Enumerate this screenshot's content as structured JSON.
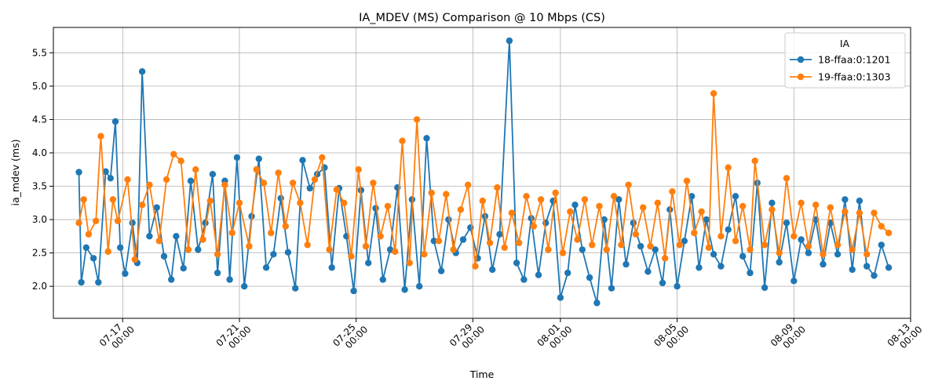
{
  "chart_data": {
    "type": "line",
    "title": "IA_MDEV (MS) Comparison @ 10 Mbps (CS)",
    "xlabel": "Time",
    "ylabel": "ia_mdev (ms)",
    "x_type": "date",
    "xlim": [
      "2025-07-14T15:00",
      "2025-08-13T00:00"
    ],
    "ylim": [
      1.52,
      5.88
    ],
    "x_ticks": [
      {
        "date": "2025-07-17",
        "line1": "07-17",
        "line2": "00:00"
      },
      {
        "date": "2025-07-21",
        "line1": "07-21",
        "line2": "00:00"
      },
      {
        "date": "2025-07-25",
        "line1": "07-25",
        "line2": "00:00"
      },
      {
        "date": "2025-07-29",
        "line1": "07-29",
        "line2": "00:00"
      },
      {
        "date": "2025-08-01",
        "line1": "08-01",
        "line2": "00:00"
      },
      {
        "date": "2025-08-05",
        "line1": "08-05",
        "line2": "00:00"
      },
      {
        "date": "2025-08-09",
        "line1": "08-09",
        "line2": "00:00"
      },
      {
        "date": "2025-08-13",
        "line1": "08-13",
        "line2": "00:00"
      }
    ],
    "y_ticks": [
      "2.0",
      "2.5",
      "3.0",
      "3.5",
      "4.0",
      "4.5",
      "5.0",
      "5.5"
    ],
    "grid": true,
    "legend": {
      "title": "IA",
      "placement": "top-right"
    },
    "series": [
      {
        "name": "18-ffaa:0:1201",
        "color": "#1f77b4",
        "points": [
          [
            "2025-07-15T12:00",
            3.71
          ],
          [
            "2025-07-15T14:00",
            2.06
          ],
          [
            "2025-07-15T18:00",
            2.58
          ],
          [
            "2025-07-16T00:00",
            2.42
          ],
          [
            "2025-07-16T04:00",
            2.06
          ],
          [
            "2025-07-16T10:00",
            3.72
          ],
          [
            "2025-07-16T14:00",
            3.62
          ],
          [
            "2025-07-16T18:00",
            4.47
          ],
          [
            "2025-07-16T22:00",
            2.58
          ],
          [
            "2025-07-17T02:00",
            2.19
          ],
          [
            "2025-07-17T08:00",
            2.95
          ],
          [
            "2025-07-17T12:00",
            2.35
          ],
          [
            "2025-07-17T16:00",
            5.22
          ],
          [
            "2025-07-17T22:00",
            2.75
          ],
          [
            "2025-07-18T04:00",
            3.18
          ],
          [
            "2025-07-18T10:00",
            2.45
          ],
          [
            "2025-07-18T16:00",
            2.1
          ],
          [
            "2025-07-18T20:00",
            2.75
          ],
          [
            "2025-07-19T02:00",
            2.27
          ],
          [
            "2025-07-19T08:00",
            3.58
          ],
          [
            "2025-07-19T14:00",
            2.55
          ],
          [
            "2025-07-19T20:00",
            2.95
          ],
          [
            "2025-07-20T02:00",
            3.68
          ],
          [
            "2025-07-20T06:00",
            2.2
          ],
          [
            "2025-07-20T12:00",
            3.58
          ],
          [
            "2025-07-20T16:00",
            2.1
          ],
          [
            "2025-07-20T22:00",
            3.93
          ],
          [
            "2025-07-21T04:00",
            2.0
          ],
          [
            "2025-07-21T10:00",
            3.05
          ],
          [
            "2025-07-21T16:00",
            3.91
          ],
          [
            "2025-07-21T22:00",
            2.28
          ],
          [
            "2025-07-22T04:00",
            2.48
          ],
          [
            "2025-07-22T10:00",
            3.32
          ],
          [
            "2025-07-22T16:00",
            2.51
          ],
          [
            "2025-07-22T22:00",
            1.97
          ],
          [
            "2025-07-23T04:00",
            3.89
          ],
          [
            "2025-07-23T10:00",
            3.47
          ],
          [
            "2025-07-23T16:00",
            3.68
          ],
          [
            "2025-07-23T22:00",
            3.78
          ],
          [
            "2025-07-24T04:00",
            2.28
          ],
          [
            "2025-07-24T10:00",
            3.47
          ],
          [
            "2025-07-24T16:00",
            2.75
          ],
          [
            "2025-07-24T22:00",
            1.93
          ],
          [
            "2025-07-25T04:00",
            3.44
          ],
          [
            "2025-07-25T10:00",
            2.35
          ],
          [
            "2025-07-25T16:00",
            3.17
          ],
          [
            "2025-07-25T22:00",
            2.1
          ],
          [
            "2025-07-26T04:00",
            2.55
          ],
          [
            "2025-07-26T10:00",
            3.48
          ],
          [
            "2025-07-26T16:00",
            1.95
          ],
          [
            "2025-07-26T22:00",
            3.3
          ],
          [
            "2025-07-27T04:00",
            2.0
          ],
          [
            "2025-07-27T10:00",
            4.22
          ],
          [
            "2025-07-27T16:00",
            2.68
          ],
          [
            "2025-07-27T22:00",
            2.23
          ],
          [
            "2025-07-28T04:00",
            3.0
          ],
          [
            "2025-07-28T10:00",
            2.5
          ],
          [
            "2025-07-28T16:00",
            2.7
          ],
          [
            "2025-07-28T22:00",
            2.88
          ],
          [
            "2025-07-29T04:00",
            2.42
          ],
          [
            "2025-07-29T10:00",
            3.05
          ],
          [
            "2025-07-29T16:00",
            2.25
          ],
          [
            "2025-07-29T22:00",
            2.78
          ],
          [
            "2025-07-30T06:00",
            5.68
          ],
          [
            "2025-07-30T12:00",
            2.35
          ],
          [
            "2025-07-30T18:00",
            2.1
          ],
          [
            "2025-07-31T00:00",
            3.02
          ],
          [
            "2025-07-31T06:00",
            2.17
          ],
          [
            "2025-07-31T12:00",
            2.95
          ],
          [
            "2025-07-31T18:00",
            3.28
          ],
          [
            "2025-08-01T00:00",
            1.83
          ],
          [
            "2025-08-01T06:00",
            2.2
          ],
          [
            "2025-08-01T12:00",
            3.22
          ],
          [
            "2025-08-01T18:00",
            2.55
          ],
          [
            "2025-08-02T00:00",
            2.13
          ],
          [
            "2025-08-02T06:00",
            1.75
          ],
          [
            "2025-08-02T12:00",
            3.0
          ],
          [
            "2025-08-02T18:00",
            1.97
          ],
          [
            "2025-08-03T00:00",
            3.3
          ],
          [
            "2025-08-03T06:00",
            2.33
          ],
          [
            "2025-08-03T12:00",
            2.95
          ],
          [
            "2025-08-03T18:00",
            2.6
          ],
          [
            "2025-08-04T00:00",
            2.22
          ],
          [
            "2025-08-04T06:00",
            2.55
          ],
          [
            "2025-08-04T12:00",
            2.05
          ],
          [
            "2025-08-04T18:00",
            3.15
          ],
          [
            "2025-08-05T00:00",
            2.0
          ],
          [
            "2025-08-05T06:00",
            2.68
          ],
          [
            "2025-08-05T12:00",
            3.35
          ],
          [
            "2025-08-05T18:00",
            2.28
          ],
          [
            "2025-08-06T00:00",
            3.0
          ],
          [
            "2025-08-06T06:00",
            2.48
          ],
          [
            "2025-08-06T12:00",
            2.3
          ],
          [
            "2025-08-06T18:00",
            2.85
          ],
          [
            "2025-08-07T00:00",
            3.35
          ],
          [
            "2025-08-07T06:00",
            2.45
          ],
          [
            "2025-08-07T12:00",
            2.2
          ],
          [
            "2025-08-07T18:00",
            3.55
          ],
          [
            "2025-08-08T00:00",
            1.98
          ],
          [
            "2025-08-08T06:00",
            3.25
          ],
          [
            "2025-08-08T12:00",
            2.36
          ],
          [
            "2025-08-08T18:00",
            2.95
          ],
          [
            "2025-08-09T00:00",
            2.08
          ],
          [
            "2025-08-09T06:00",
            2.7
          ],
          [
            "2025-08-09T12:00",
            2.5
          ],
          [
            "2025-08-09T18:00",
            3.0
          ],
          [
            "2025-08-10T00:00",
            2.33
          ],
          [
            "2025-08-10T06:00",
            2.95
          ],
          [
            "2025-08-10T12:00",
            2.48
          ],
          [
            "2025-08-10T18:00",
            3.3
          ],
          [
            "2025-08-11T00:00",
            2.25
          ],
          [
            "2025-08-11T06:00",
            3.28
          ],
          [
            "2025-08-11T12:00",
            2.3
          ],
          [
            "2025-08-11T18:00",
            2.16
          ],
          [
            "2025-08-12T00:00",
            2.62
          ],
          [
            "2025-08-12T06:00",
            2.28
          ]
        ]
      },
      {
        "name": "19-ffaa:0:1303",
        "color": "#ff7f0e",
        "points": [
          [
            "2025-07-15T12:00",
            2.95
          ],
          [
            "2025-07-15T16:00",
            3.3
          ],
          [
            "2025-07-15T20:00",
            2.78
          ],
          [
            "2025-07-16T02:00",
            2.98
          ],
          [
            "2025-07-16T06:00",
            4.25
          ],
          [
            "2025-07-16T12:00",
            2.52
          ],
          [
            "2025-07-16T16:00",
            3.3
          ],
          [
            "2025-07-16T20:00",
            2.98
          ],
          [
            "2025-07-17T04:00",
            3.6
          ],
          [
            "2025-07-17T10:00",
            2.4
          ],
          [
            "2025-07-17T16:00",
            3.22
          ],
          [
            "2025-07-17T22:00",
            3.52
          ],
          [
            "2025-07-18T06:00",
            2.68
          ],
          [
            "2025-07-18T12:00",
            3.6
          ],
          [
            "2025-07-18T18:00",
            3.98
          ],
          [
            "2025-07-19T00:00",
            3.88
          ],
          [
            "2025-07-19T06:00",
            2.55
          ],
          [
            "2025-07-19T12:00",
            3.75
          ],
          [
            "2025-07-19T18:00",
            2.7
          ],
          [
            "2025-07-20T00:00",
            3.28
          ],
          [
            "2025-07-20T06:00",
            2.48
          ],
          [
            "2025-07-20T12:00",
            3.52
          ],
          [
            "2025-07-20T18:00",
            2.8
          ],
          [
            "2025-07-21T00:00",
            3.25
          ],
          [
            "2025-07-21T08:00",
            2.6
          ],
          [
            "2025-07-21T14:00",
            3.75
          ],
          [
            "2025-07-21T20:00",
            3.55
          ],
          [
            "2025-07-22T02:00",
            2.8
          ],
          [
            "2025-07-22T08:00",
            3.7
          ],
          [
            "2025-07-22T14:00",
            2.9
          ],
          [
            "2025-07-22T20:00",
            3.55
          ],
          [
            "2025-07-23T02:00",
            3.25
          ],
          [
            "2025-07-23T08:00",
            2.62
          ],
          [
            "2025-07-23T14:00",
            3.6
          ],
          [
            "2025-07-23T20:00",
            3.93
          ],
          [
            "2025-07-24T02:00",
            2.55
          ],
          [
            "2025-07-24T08:00",
            3.45
          ],
          [
            "2025-07-24T14:00",
            3.25
          ],
          [
            "2025-07-24T20:00",
            2.45
          ],
          [
            "2025-07-25T02:00",
            3.75
          ],
          [
            "2025-07-25T08:00",
            2.6
          ],
          [
            "2025-07-25T14:00",
            3.55
          ],
          [
            "2025-07-25T20:00",
            2.75
          ],
          [
            "2025-07-26T02:00",
            3.2
          ],
          [
            "2025-07-26T08:00",
            2.52
          ],
          [
            "2025-07-26T14:00",
            4.18
          ],
          [
            "2025-07-26T20:00",
            2.35
          ],
          [
            "2025-07-27T02:00",
            4.5
          ],
          [
            "2025-07-27T08:00",
            2.48
          ],
          [
            "2025-07-27T14:00",
            3.4
          ],
          [
            "2025-07-27T20:00",
            2.68
          ],
          [
            "2025-07-28T02:00",
            3.38
          ],
          [
            "2025-07-28T08:00",
            2.55
          ],
          [
            "2025-07-28T14:00",
            3.15
          ],
          [
            "2025-07-28T20:00",
            3.52
          ],
          [
            "2025-07-29T02:00",
            2.3
          ],
          [
            "2025-07-29T08:00",
            3.28
          ],
          [
            "2025-07-29T14:00",
            2.65
          ],
          [
            "2025-07-29T20:00",
            3.48
          ],
          [
            "2025-07-30T02:00",
            2.58
          ],
          [
            "2025-07-30T08:00",
            3.1
          ],
          [
            "2025-07-30T14:00",
            2.65
          ],
          [
            "2025-07-30T20:00",
            3.35
          ],
          [
            "2025-07-31T02:00",
            2.9
          ],
          [
            "2025-07-31T08:00",
            3.3
          ],
          [
            "2025-07-31T14:00",
            2.55
          ],
          [
            "2025-07-31T20:00",
            3.4
          ],
          [
            "2025-08-01T02:00",
            2.5
          ],
          [
            "2025-08-01T08:00",
            3.12
          ],
          [
            "2025-08-01T14:00",
            2.7
          ],
          [
            "2025-08-01T20:00",
            3.3
          ],
          [
            "2025-08-02T02:00",
            2.62
          ],
          [
            "2025-08-02T08:00",
            3.2
          ],
          [
            "2025-08-02T14:00",
            2.55
          ],
          [
            "2025-08-02T20:00",
            3.35
          ],
          [
            "2025-08-03T02:00",
            2.62
          ],
          [
            "2025-08-03T08:00",
            3.52
          ],
          [
            "2025-08-03T14:00",
            2.78
          ],
          [
            "2025-08-03T20:00",
            3.18
          ],
          [
            "2025-08-04T02:00",
            2.6
          ],
          [
            "2025-08-04T08:00",
            3.25
          ],
          [
            "2025-08-04T14:00",
            2.42
          ],
          [
            "2025-08-04T20:00",
            3.42
          ],
          [
            "2025-08-05T02:00",
            2.62
          ],
          [
            "2025-08-05T08:00",
            3.58
          ],
          [
            "2025-08-05T14:00",
            2.8
          ],
          [
            "2025-08-05T20:00",
            3.12
          ],
          [
            "2025-08-06T02:00",
            2.58
          ],
          [
            "2025-08-06T06:00",
            4.89
          ],
          [
            "2025-08-06T12:00",
            2.75
          ],
          [
            "2025-08-06T18:00",
            3.78
          ],
          [
            "2025-08-07T00:00",
            2.68
          ],
          [
            "2025-08-07T06:00",
            3.2
          ],
          [
            "2025-08-07T12:00",
            2.55
          ],
          [
            "2025-08-07T16:00",
            3.88
          ],
          [
            "2025-08-08T00:00",
            2.62
          ],
          [
            "2025-08-08T06:00",
            3.15
          ],
          [
            "2025-08-08T12:00",
            2.5
          ],
          [
            "2025-08-08T18:00",
            3.62
          ],
          [
            "2025-08-09T00:00",
            2.75
          ],
          [
            "2025-08-09T06:00",
            3.25
          ],
          [
            "2025-08-09T12:00",
            2.6
          ],
          [
            "2025-08-09T18:00",
            3.22
          ],
          [
            "2025-08-10T00:00",
            2.48
          ],
          [
            "2025-08-10T06:00",
            3.18
          ],
          [
            "2025-08-10T12:00",
            2.62
          ],
          [
            "2025-08-10T18:00",
            3.12
          ],
          [
            "2025-08-11T00:00",
            2.55
          ],
          [
            "2025-08-11T06:00",
            3.1
          ],
          [
            "2025-08-11T12:00",
            2.48
          ],
          [
            "2025-08-11T18:00",
            3.1
          ],
          [
            "2025-08-12T00:00",
            2.9
          ],
          [
            "2025-08-12T06:00",
            2.8
          ]
        ]
      }
    ]
  }
}
